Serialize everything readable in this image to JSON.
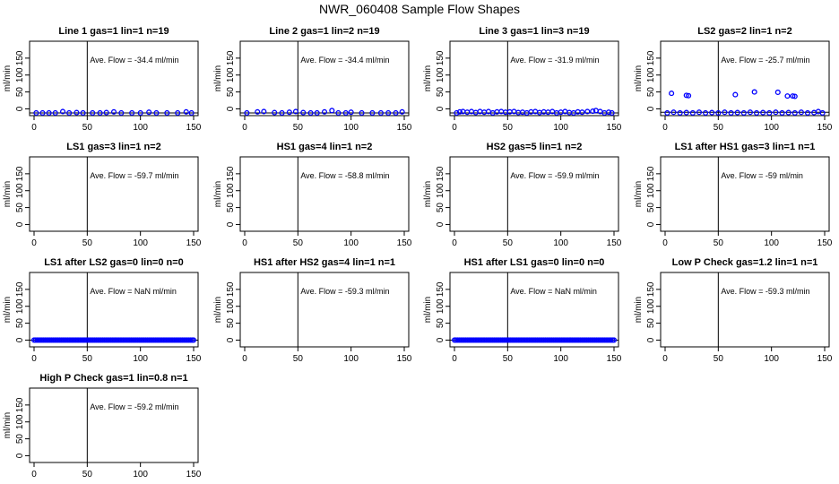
{
  "title": "NWR_060408  Sample Flow Shapes",
  "colors": {
    "points": "#0000ff",
    "axis": "#000000"
  },
  "common": {
    "ylabel": "ml/min",
    "xlim": [
      0,
      150
    ],
    "ylim": [
      -20,
      200
    ],
    "xticks": [
      0,
      50,
      100,
      150
    ],
    "yticks": [
      0,
      50,
      100,
      150
    ],
    "vline_x": 50
  },
  "chart_data": [
    {
      "type": "scatter",
      "title": "Line 1 gas=1 lin=1 n=19",
      "annotation": "Ave. Flow =  -34.4  ml/min",
      "hline": -12,
      "points": [
        [
          2,
          -12
        ],
        [
          8,
          -12
        ],
        [
          14,
          -12
        ],
        [
          20,
          -12
        ],
        [
          27,
          -8
        ],
        [
          33,
          -12
        ],
        [
          40,
          -11
        ],
        [
          46,
          -12
        ],
        [
          55,
          -12
        ],
        [
          62,
          -12
        ],
        [
          68,
          -11
        ],
        [
          75,
          -9
        ],
        [
          82,
          -12
        ],
        [
          92,
          -12
        ],
        [
          100,
          -12
        ],
        [
          108,
          -10
        ],
        [
          115,
          -12
        ],
        [
          125,
          -12
        ],
        [
          135,
          -12
        ],
        [
          143,
          -9
        ],
        [
          148,
          -12
        ]
      ]
    },
    {
      "type": "scatter",
      "title": "Line 2 gas=1 lin=2 n=19",
      "annotation": "Ave. Flow =  -34.4  ml/min",
      "hline": -12,
      "points": [
        [
          2,
          -12
        ],
        [
          12,
          -9
        ],
        [
          18,
          -8
        ],
        [
          28,
          -11
        ],
        [
          35,
          -12
        ],
        [
          42,
          -10
        ],
        [
          48,
          -8
        ],
        [
          55,
          -11
        ],
        [
          62,
          -12
        ],
        [
          68,
          -12
        ],
        [
          75,
          -9
        ],
        [
          82,
          -5
        ],
        [
          88,
          -12
        ],
        [
          95,
          -12
        ],
        [
          100,
          -10
        ],
        [
          110,
          -12
        ],
        [
          120,
          -12
        ],
        [
          128,
          -12
        ],
        [
          135,
          -12
        ],
        [
          142,
          -12
        ],
        [
          148,
          -9
        ]
      ]
    },
    {
      "type": "scatter",
      "title": "Line 3 gas=1 lin=3 n=19",
      "annotation": "Ave. Flow =  -31.9  ml/min",
      "hline": -12,
      "points": [
        [
          2,
          -12
        ],
        [
          5,
          -9
        ],
        [
          8,
          -8
        ],
        [
          12,
          -10
        ],
        [
          16,
          -8
        ],
        [
          20,
          -11
        ],
        [
          24,
          -8
        ],
        [
          28,
          -10
        ],
        [
          32,
          -8
        ],
        [
          36,
          -12
        ],
        [
          40,
          -9
        ],
        [
          44,
          -8
        ],
        [
          48,
          -10
        ],
        [
          52,
          -9
        ],
        [
          56,
          -8
        ],
        [
          60,
          -11
        ],
        [
          64,
          -10
        ],
        [
          68,
          -12
        ],
        [
          72,
          -9
        ],
        [
          76,
          -8
        ],
        [
          80,
          -11
        ],
        [
          84,
          -9
        ],
        [
          88,
          -10
        ],
        [
          92,
          -8
        ],
        [
          96,
          -12
        ],
        [
          100,
          -10
        ],
        [
          104,
          -8
        ],
        [
          108,
          -11
        ],
        [
          112,
          -12
        ],
        [
          116,
          -9
        ],
        [
          120,
          -10
        ],
        [
          125,
          -8
        ],
        [
          130,
          -7
        ],
        [
          133,
          -5
        ],
        [
          137,
          -8
        ],
        [
          141,
          -12
        ],
        [
          145,
          -10
        ],
        [
          148,
          -12
        ]
      ]
    },
    {
      "type": "scatter",
      "title": "LS2 gas=2 lin=1 n=2",
      "annotation": "Ave. Flow =  -25.7  ml/min",
      "hline": -10,
      "points": [
        [
          6,
          46
        ],
        [
          20,
          40
        ],
        [
          22,
          39
        ],
        [
          66,
          42
        ],
        [
          84,
          50
        ],
        [
          106,
          49
        ],
        [
          115,
          38
        ],
        [
          120,
          38
        ],
        [
          122,
          37
        ],
        [
          2,
          -12
        ],
        [
          8,
          -10
        ],
        [
          14,
          -12
        ],
        [
          20,
          -11
        ],
        [
          26,
          -12
        ],
        [
          32,
          -10
        ],
        [
          38,
          -12
        ],
        [
          44,
          -11
        ],
        [
          50,
          -12
        ],
        [
          56,
          -10
        ],
        [
          62,
          -12
        ],
        [
          68,
          -11
        ],
        [
          74,
          -12
        ],
        [
          80,
          -10
        ],
        [
          86,
          -12
        ],
        [
          92,
          -11
        ],
        [
          98,
          -12
        ],
        [
          104,
          -10
        ],
        [
          110,
          -12
        ],
        [
          116,
          -11
        ],
        [
          122,
          -12
        ],
        [
          128,
          -10
        ],
        [
          134,
          -12
        ],
        [
          140,
          -11
        ],
        [
          144,
          -8
        ],
        [
          148,
          -12
        ]
      ]
    },
    {
      "type": "scatter",
      "title": "LS1 gas=3 lin=1 n=2",
      "annotation": "Ave. Flow =  -59.7  ml/min",
      "points": []
    },
    {
      "type": "scatter",
      "title": "HS1 gas=4 lin=1 n=2",
      "annotation": "Ave. Flow =  -58.8  ml/min",
      "points": []
    },
    {
      "type": "scatter",
      "title": "HS2 gas=5 lin=1 n=2",
      "annotation": "Ave. Flow =  -59.9  ml/min",
      "points": []
    },
    {
      "type": "scatter",
      "title": "LS1 after HS1 gas=3 lin=1 n=1",
      "annotation": "Ave. Flow =  -59  ml/min",
      "points": []
    },
    {
      "type": "scatter",
      "title": "LS1 after LS2 gas=0 lin=0 n=0",
      "annotation": "Ave. Flow =  NaN  ml/min",
      "hline": 0,
      "dense_zero": true,
      "points": []
    },
    {
      "type": "scatter",
      "title": "HS1 after HS2 gas=4 lin=1 n=1",
      "annotation": "Ave. Flow =  -59.3  ml/min",
      "points": []
    },
    {
      "type": "scatter",
      "title": "HS1 after LS1 gas=0 lin=0 n=0",
      "annotation": "Ave. Flow =  NaN  ml/min",
      "hline": 0,
      "dense_zero": true,
      "points": []
    },
    {
      "type": "scatter",
      "title": "Low P Check gas=1.2 lin=1 n=1",
      "annotation": "Ave. Flow =  -59.3  ml/min",
      "points": []
    },
    {
      "type": "scatter",
      "title": "High P Check gas=1 lin=0.8 n=1",
      "annotation": "Ave. Flow =  -59.2  ml/min",
      "points": []
    }
  ]
}
